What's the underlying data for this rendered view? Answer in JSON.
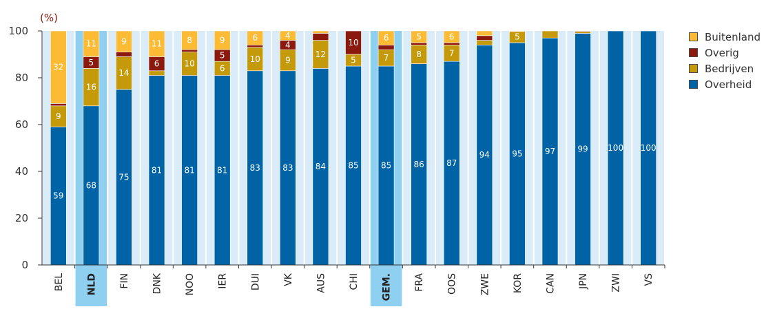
{
  "chart_data": {
    "type": "bar",
    "stacked": true,
    "ylabel": "(%)",
    "ylim": [
      0,
      100
    ],
    "yticks": [
      "0",
      "20",
      "40",
      "60",
      "80",
      "100"
    ],
    "categories": [
      "BEL",
      "NLD",
      "FIN",
      "DNK",
      "NOO",
      "IER",
      "DUI",
      "VK",
      "AUS",
      "CHI",
      "GEM.",
      "FRA",
      "OOS",
      "ZWE",
      "KOR",
      "CAN",
      "JPN",
      "ZWI",
      "VS"
    ],
    "highlighted_categories": [
      "NLD",
      "GEM."
    ],
    "series": [
      {
        "name": "Overheid",
        "color": "#0063a6",
        "values": [
          59,
          68,
          75,
          81,
          81,
          81,
          83,
          83,
          84,
          85,
          85,
          86,
          87,
          94,
          95,
          97,
          99,
          100,
          100
        ],
        "labels": [
          "59",
          "68",
          "75",
          "81",
          "81",
          "81",
          "83",
          "83",
          "84",
          "85",
          "85",
          "86",
          "87",
          "94",
          "95",
          "97",
          "99",
          "100",
          "100"
        ]
      },
      {
        "name": "Bedrijven",
        "color": "#c49a0a",
        "values": [
          9,
          16,
          14,
          2,
          10,
          6,
          10,
          9,
          12,
          5,
          7,
          8,
          7,
          2,
          5,
          3,
          1,
          0,
          0
        ],
        "labels": [
          "9",
          "16",
          "14",
          "",
          "10",
          "6",
          "10",
          "9",
          "12",
          "5",
          "7",
          "8",
          "7",
          "",
          "5",
          "",
          "",
          "",
          ""
        ]
      },
      {
        "name": "Overig",
        "color": "#8b1a0e",
        "values": [
          1,
          5,
          2,
          6,
          1,
          5,
          1,
          4,
          3,
          10,
          2,
          1,
          1,
          2,
          0,
          0,
          0.5,
          0,
          0
        ],
        "labels": [
          "",
          "5",
          "",
          "6",
          "",
          "5",
          "",
          "4",
          "",
          "10",
          "",
          "",
          "",
          "",
          "",
          "",
          "",
          "",
          ""
        ]
      },
      {
        "name": "Buitenland",
        "color": "#fbbb34",
        "values": [
          32,
          11,
          9,
          11,
          8,
          9,
          6,
          4,
          2,
          0,
          6,
          5,
          6,
          2,
          0.3,
          0,
          0,
          0,
          0
        ],
        "labels": [
          "32",
          "11",
          "9",
          "11",
          "8",
          "9",
          "6",
          "4",
          "",
          "",
          "6",
          "5",
          "6",
          "",
          "",
          "",
          "",
          "",
          ""
        ]
      }
    ],
    "legend_order": [
      "Buitenland",
      "Overig",
      "Bedrijven",
      "Overheid"
    ],
    "legend_position": "right",
    "grid": false,
    "colors": {
      "column_background": "#d9ecf7",
      "highlight_background": "#8fd0f0",
      "axis": "#333333"
    }
  }
}
